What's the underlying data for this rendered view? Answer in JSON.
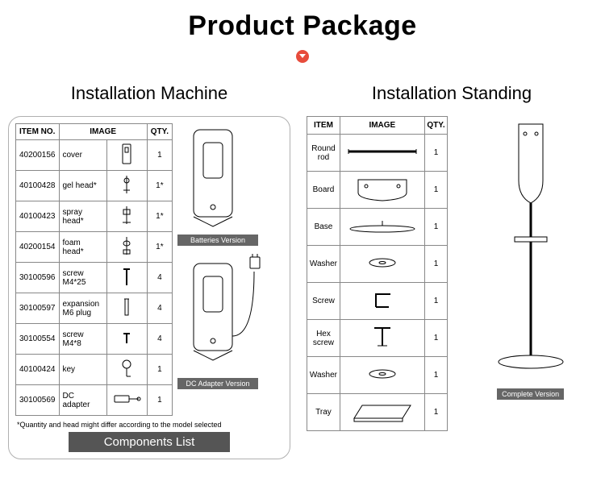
{
  "title": "Product Package",
  "left": {
    "heading": "Installation Machine",
    "table": {
      "headers": [
        "ITEM NO.",
        "IMAGE",
        "QTY."
      ],
      "rows": [
        {
          "no": "40200156",
          "name": "cover",
          "qty": "1",
          "icon": "cover"
        },
        {
          "no": "40100428",
          "name": "gel head*",
          "qty": "1*",
          "icon": "gelhead"
        },
        {
          "no": "40100423",
          "name": "spray head*",
          "qty": "1*",
          "icon": "sprayhead"
        },
        {
          "no": "40200154",
          "name": "foam head*",
          "qty": "1*",
          "icon": "foamhead"
        },
        {
          "no": "30100596",
          "name": "screw M4*25",
          "qty": "4",
          "icon": "screw-long"
        },
        {
          "no": "30100597",
          "name": "expansion M6 plug",
          "qty": "4",
          "icon": "plug"
        },
        {
          "no": "30100554",
          "name": "screw M4*8",
          "qty": "4",
          "icon": "screw-short"
        },
        {
          "no": "40100424",
          "name": "key",
          "qty": "1",
          "icon": "key"
        },
        {
          "no": "30100569",
          "name": "DC adapter",
          "qty": "1",
          "icon": "dc"
        }
      ]
    },
    "caption_battery": "Batteries Version",
    "caption_dc": "DC Adapter Version",
    "footnote": "*Quantity and head might differ according to the model selected",
    "components_label": "Components List"
  },
  "right": {
    "heading": "Installation Standing",
    "table": {
      "headers": [
        "ITEM",
        "IMAGE",
        "QTY."
      ],
      "rows": [
        {
          "name": "Round rod",
          "qty": "1",
          "icon": "rod"
        },
        {
          "name": "Board",
          "qty": "1",
          "icon": "board"
        },
        {
          "name": "Base",
          "qty": "1",
          "icon": "base"
        },
        {
          "name": "Washer",
          "qty": "1",
          "icon": "washer"
        },
        {
          "name": "Screw",
          "qty": "1",
          "icon": "Lscrew"
        },
        {
          "name": "Hex screw",
          "qty": "1",
          "icon": "hex"
        },
        {
          "name": "Washer",
          "qty": "1",
          "icon": "washer"
        },
        {
          "name": "Tray",
          "qty": "1",
          "icon": "tray"
        }
      ]
    },
    "caption_complete": "Complete Version"
  },
  "style": {
    "stroke": "#000000",
    "fill_none": "none",
    "fill_white": "#ffffff",
    "caption_bg": "#666666"
  }
}
